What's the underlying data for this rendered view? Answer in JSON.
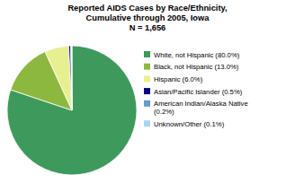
{
  "chart_data": {
    "type": "pie",
    "title": "Reported AIDS Cases by Race/Ethnicity,\nCumulative through 2005, Iowa",
    "subtitle": "N = 1,656",
    "categories": [
      "White, not Hispanic (80.0%)",
      "Black, not Hispanic (13.0%)",
      "Hispanic (6.0%)",
      "Asian/Pacific Islander (0.5%)",
      "American Indian/Alaska Native\n(0.2%)",
      "Unknown/Other (0.1%)"
    ],
    "values": [
      80.0,
      13.0,
      6.0,
      0.5,
      0.2,
      0.1
    ],
    "colors": [
      "#3d9a5c",
      "#8db840",
      "#e8ef90",
      "#000080",
      "#6699cc",
      "#aad4f0"
    ],
    "legend": "right"
  }
}
